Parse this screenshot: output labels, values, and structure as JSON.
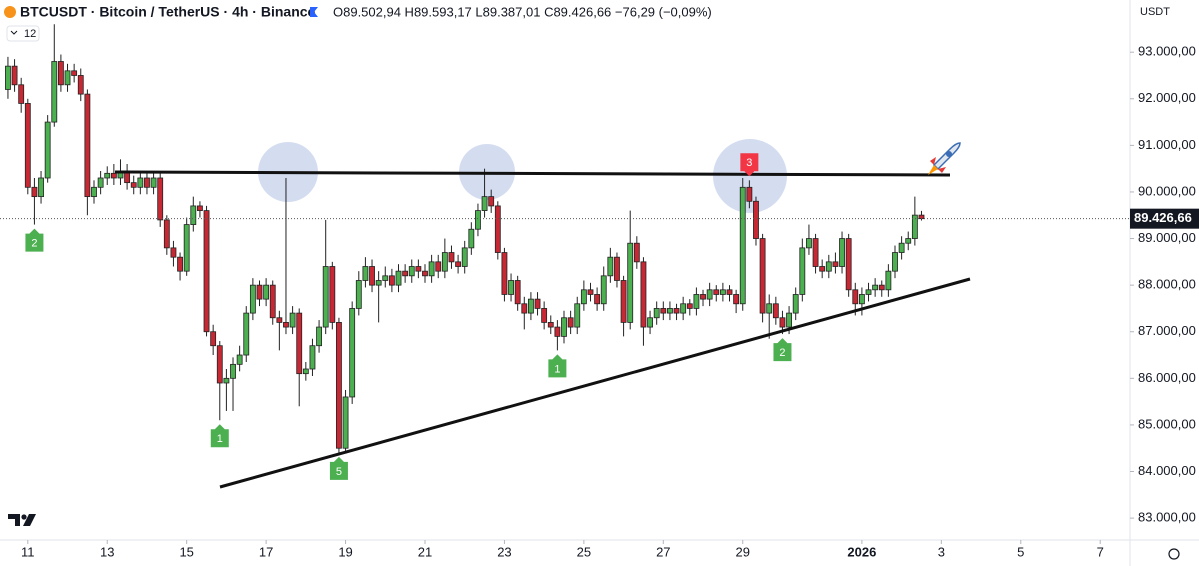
{
  "chart_data": {
    "type": "candlestick",
    "title": "BTCUSDT · Bitcoin / TetherUS · 4h · Binance",
    "ohlc_text": "O89.502,94 H89.593,17 L89.387,01 C89.426,66 −76,29 (−0,09%)",
    "indicator_label": "12",
    "currency_label": "USDT",
    "last_price_label": "89.426,66",
    "up_color": "#4caf50",
    "down_color": "#c62834",
    "open": [
      92200,
      92700,
      92300,
      91900,
      90100,
      89900,
      90300,
      91500,
      92800,
      92300,
      92600,
      92500,
      92100,
      89900,
      90100,
      90300,
      90400,
      90300,
      90450,
      90200,
      90100,
      90300,
      90100,
      90300,
      89400,
      88800,
      88600,
      88300,
      89300,
      89700,
      89600,
      87000,
      86700,
      85900,
      86000,
      86300,
      86500,
      87400,
      88000,
      87700,
      88000,
      87300,
      87200,
      87100,
      87400,
      86100,
      86200,
      86700,
      87100,
      88400,
      87200,
      84500,
      85600,
      87500,
      88100,
      88400,
      88000,
      88100,
      88200,
      88000,
      88300,
      88200,
      88400,
      88300,
      88200,
      88500,
      88300,
      88700,
      88500,
      88400,
      88800,
      89200,
      89600,
      89900,
      89700,
      88700,
      87800,
      88100,
      87600,
      87400,
      87700,
      87500,
      87200,
      87100,
      86900,
      87300,
      87100,
      87600,
      87900,
      87800,
      87600,
      88200,
      88600,
      88100,
      87200,
      88900,
      88500,
      87100,
      87300,
      87500,
      87400,
      87500,
      87400,
      87600,
      87500,
      87800,
      87700,
      87900,
      87800,
      87900,
      87800,
      87600,
      90100,
      89800,
      89000,
      87400,
      87600,
      87300,
      87100,
      87400,
      87800,
      88800,
      89000,
      88400,
      88300,
      88500,
      88400,
      89000,
      87900,
      87600,
      87800,
      87900,
      88000,
      87900,
      88300,
      88700,
      88900,
      89000,
      89502.94
    ],
    "high": [
      92900,
      92850,
      92450,
      92000,
      90300,
      90450,
      91650,
      93600,
      92950,
      92750,
      92750,
      92650,
      92200,
      90250,
      90450,
      90550,
      90600,
      90700,
      90600,
      90350,
      90450,
      90450,
      90450,
      90400,
      89500,
      88950,
      88700,
      89450,
      89900,
      89800,
      89700,
      87150,
      86800,
      86200,
      86450,
      86700,
      87550,
      88150,
      88100,
      88150,
      88100,
      87450,
      90300,
      87550,
      87500,
      86350,
      86850,
      87250,
      89400,
      88500,
      87300,
      85750,
      87650,
      88300,
      88600,
      88550,
      88300,
      88400,
      88350,
      88450,
      88450,
      88550,
      88550,
      88450,
      88650,
      88650,
      89000,
      88850,
      88650,
      88950,
      89350,
      89750,
      90500,
      90050,
      89800,
      88800,
      88250,
      88200,
      87750,
      87850,
      87850,
      87650,
      87350,
      87250,
      87450,
      87450,
      87750,
      88100,
      88050,
      87950,
      88400,
      88800,
      88700,
      88200,
      89600,
      89050,
      88600,
      87450,
      87650,
      87650,
      87650,
      87600,
      87750,
      87700,
      87950,
      87900,
      88050,
      88000,
      88050,
      88000,
      87900,
      90300,
      90250,
      89900,
      89100,
      87800,
      87750,
      87450,
      87550,
      87950,
      89000,
      89300,
      89100,
      88550,
      88650,
      88700,
      89150,
      89100,
      88050,
      87950,
      88050,
      88150,
      88100,
      88450,
      88850,
      89050,
      89150,
      89900,
      89593.17
    ],
    "low": [
      92000,
      92150,
      91700,
      89950,
      89300,
      89750,
      90200,
      91400,
      92150,
      92150,
      92350,
      91950,
      89500,
      89750,
      89950,
      90150,
      90150,
      90150,
      90050,
      89950,
      89950,
      89950,
      89950,
      89250,
      88650,
      88400,
      88100,
      88200,
      89150,
      89450,
      86900,
      86500,
      85100,
      85300,
      85300,
      86150,
      86350,
      87250,
      87550,
      87550,
      87150,
      86600,
      86950,
      86950,
      85400,
      85950,
      86050,
      86550,
      86950,
      87050,
      84400,
      84400,
      85450,
      87350,
      87950,
      87850,
      87200,
      87950,
      87850,
      87850,
      88050,
      88050,
      88150,
      88050,
      88050,
      88150,
      88150,
      88350,
      88250,
      88250,
      88650,
      89050,
      89450,
      89550,
      88550,
      87650,
      87650,
      87450,
      87050,
      87250,
      87350,
      87050,
      86950,
      86600,
      86750,
      86950,
      86950,
      87450,
      87650,
      87450,
      87450,
      88050,
      87950,
      86900,
      87050,
      88350,
      86700,
      86950,
      87150,
      87250,
      87250,
      87250,
      87250,
      87350,
      87350,
      87550,
      87550,
      87650,
      87650,
      87650,
      87400,
      87450,
      89650,
      88850,
      87200,
      86850,
      87150,
      86950,
      86950,
      87250,
      87650,
      88650,
      88250,
      88150,
      88150,
      88250,
      88250,
      87750,
      87350,
      87350,
      87650,
      87750,
      87750,
      87750,
      88150,
      88550,
      88750,
      88850,
      89387.01
    ],
    "close": [
      92700,
      92300,
      91900,
      90100,
      89900,
      90300,
      91500,
      92800,
      92300,
      92600,
      92500,
      92100,
      89900,
      90100,
      90300,
      90400,
      90300,
      90450,
      90200,
      90100,
      90300,
      90100,
      90300,
      89400,
      88800,
      88600,
      88300,
      89300,
      89700,
      89600,
      87000,
      86700,
      85900,
      86000,
      86300,
      86500,
      87400,
      88000,
      87700,
      88000,
      87300,
      87200,
      87100,
      87400,
      86100,
      86200,
      86700,
      87100,
      88400,
      87200,
      84500,
      85600,
      87500,
      88100,
      88400,
      88000,
      88100,
      88200,
      88000,
      88300,
      88200,
      88400,
      88300,
      88200,
      88500,
      88300,
      88700,
      88500,
      88400,
      88800,
      89200,
      89600,
      89900,
      89700,
      88700,
      87800,
      88100,
      87600,
      87400,
      87700,
      87500,
      87200,
      87100,
      86900,
      87300,
      87100,
      87600,
      87900,
      87800,
      87600,
      88200,
      88600,
      88100,
      87200,
      88900,
      88500,
      87100,
      87300,
      87500,
      87400,
      87500,
      87400,
      87600,
      87500,
      87800,
      87700,
      87900,
      87800,
      87900,
      87800,
      87600,
      90100,
      89800,
      89000,
      87400,
      87600,
      87300,
      87100,
      87400,
      87800,
      88800,
      89000,
      88400,
      88300,
      88500,
      88400,
      89000,
      87900,
      87600,
      87800,
      87900,
      88000,
      87900,
      88300,
      88700,
      88900,
      89000,
      89502.94,
      89426.66
    ],
    "xlim": [
      -1.2,
      169.5
    ],
    "xticks": [
      {
        "value": 3,
        "label": "11"
      },
      {
        "value": 15,
        "label": "13"
      },
      {
        "value": 27,
        "label": "15"
      },
      {
        "value": 39,
        "label": "17"
      },
      {
        "value": 51,
        "label": "19"
      },
      {
        "value": 63,
        "label": "21"
      },
      {
        "value": 75,
        "label": "23"
      },
      {
        "value": 87,
        "label": "25"
      },
      {
        "value": 99,
        "label": "27"
      },
      {
        "value": 111,
        "label": "29"
      },
      {
        "value": 129,
        "label": "2026"
      },
      {
        "value": 141,
        "label": "3"
      },
      {
        "value": 153,
        "label": "5"
      },
      {
        "value": 165,
        "label": "7"
      }
    ],
    "ylim": [
      82530,
      94120
    ],
    "yticks": [
      {
        "value": 83000,
        "label": "83.000,00"
      },
      {
        "value": 84000,
        "label": "84.000,00"
      },
      {
        "value": 85000,
        "label": "85.000,00"
      },
      {
        "value": 86000,
        "label": "86.000,00"
      },
      {
        "value": 87000,
        "label": "87.000,00"
      },
      {
        "value": 88000,
        "label": "88.000,00"
      },
      {
        "value": 89000,
        "label": "89.000,00"
      },
      {
        "value": 90000,
        "label": "90.000,00"
      },
      {
        "value": 91000,
        "label": "91.000,00"
      },
      {
        "value": 92000,
        "label": "92.000,00"
      },
      {
        "value": 93000,
        "label": "93.000,00"
      }
    ],
    "markers": [
      {
        "label": "2",
        "color": "#4caf50"
      },
      {
        "label": "1",
        "color": "#4caf50"
      },
      {
        "label": "5",
        "color": "#4caf50"
      },
      {
        "label": "1",
        "color": "#4caf50"
      },
      {
        "label": "3",
        "color": "#f23645"
      },
      {
        "label": "2",
        "color": "#4caf50"
      }
    ]
  }
}
